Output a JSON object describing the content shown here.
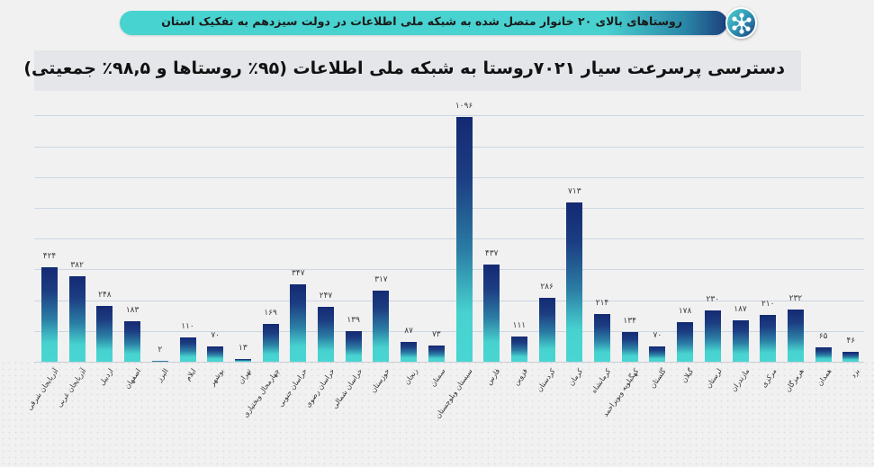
{
  "header": {
    "title": "روستاهای بالای ۲۰ خانوار متصل شده به شبکه ملی اطلاعات در دولت سیزدهم به تفکیک استان",
    "icon": "network-hub-icon",
    "pill_color_start": "#47d3cf",
    "pill_color_end": "#1c3f7c"
  },
  "chart_title": "دسترسی پرسرعت سیار ۷۰۲۱روستا به شبکه ملی اطلاعات (۹۵٪ روستاها و ۹۸,۵٪ جمعیتی)",
  "colors": {
    "bar_top": "#142a73",
    "bar_bottom": "#49d6d2",
    "gridline": "#cdd6e2",
    "background": "#f1f1f1",
    "title_box": "#e4e6ea"
  },
  "chart_data": {
    "type": "bar",
    "title": "دسترسی پرسرعت سیار ۷۰۲۱روستا به شبکه ملی اطلاعات (۹۵٪ روستاها و ۹۸,۵٪ جمعیتی)",
    "xlabel": "",
    "ylabel": "",
    "ylim": [
      0,
      1100
    ],
    "grid": true,
    "legend": "none",
    "categories": [
      "آذربایجان شرقی",
      "آذربایجان غربی",
      "اردبیل",
      "اصفهان",
      "البرز",
      "ایلام",
      "بوشهر",
      "تهران",
      "چهارمحال وبختیاری",
      "خراسان جنوبی",
      "خراسان رضوی",
      "خراسان شمالی",
      "خوزستان",
      "زنجان",
      "سمنان",
      "سیستان وبلوچستان",
      "فارس",
      "قزوین",
      "کردستان",
      "کرمان",
      "کرمانشاه",
      "کهگیلویه وبویراحمد",
      "گلستان",
      "گیلان",
      "لرستان",
      "مازندران",
      "مرکزی",
      "هرمزگان",
      "همدان",
      "یزد"
    ],
    "values": [
      424,
      382,
      248,
      183,
      2,
      110,
      70,
      13,
      169,
      347,
      247,
      139,
      317,
      87,
      73,
      1096,
      437,
      111,
      286,
      713,
      214,
      134,
      70,
      178,
      230,
      187,
      210,
      232,
      65,
      46
    ],
    "value_labels": [
      "۴۲۴",
      "۳۸۲",
      "۲۴۸",
      "۱۸۳",
      "۲",
      "۱۱۰",
      "۷۰",
      "۱۳",
      "۱۶۹",
      "۳۴۷",
      "۲۴۷",
      "۱۳۹",
      "۳۱۷",
      "۸۷",
      "۷۳",
      "۱۰۹۶",
      "۴۳۷",
      "۱۱۱",
      "۲۸۶",
      "۷۱۳",
      "۲۱۴",
      "۱۳۴",
      "۷۰",
      "۱۷۸",
      "۲۳۰",
      "۱۸۷",
      "۲۱۰",
      "۲۳۲",
      "۶۵",
      "۴۶"
    ]
  }
}
